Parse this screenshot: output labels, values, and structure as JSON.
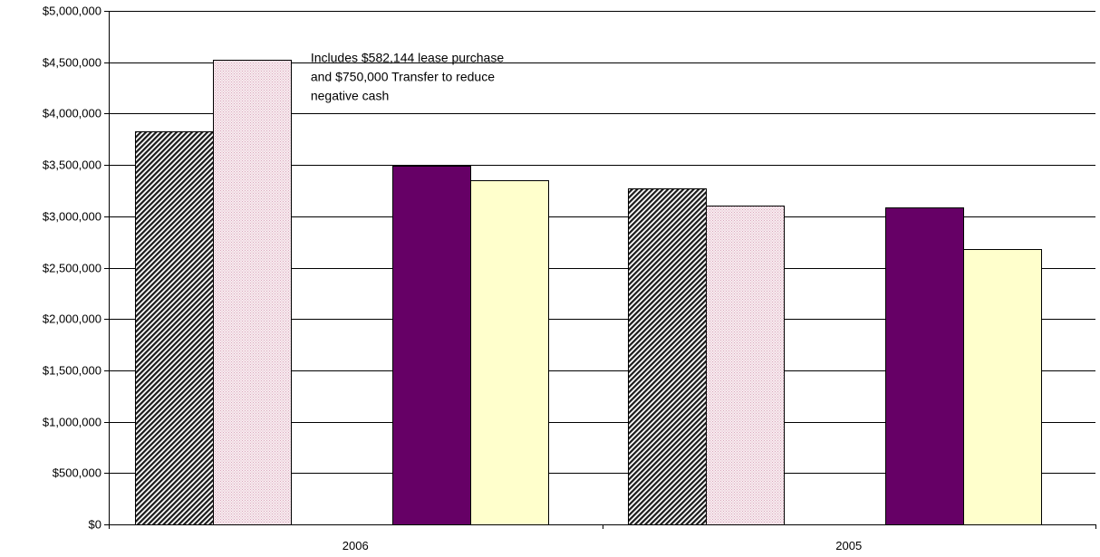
{
  "chart_data": {
    "type": "bar",
    "title": "",
    "xlabel": "",
    "ylabel": "",
    "ylim": [
      0,
      5000000
    ],
    "yticks": [
      0,
      500000,
      1000000,
      1500000,
      2000000,
      2500000,
      3000000,
      3500000,
      4000000,
      4500000,
      5000000
    ],
    "ytick_labels": [
      "$0",
      "$500,000",
      "$1,000,000",
      "$1,500,000",
      "$2,000,000",
      "$2,500,000",
      "$3,000,000",
      "$3,500,000",
      "$4,000,000",
      "$4,500,000",
      "$5,000,000"
    ],
    "grid": true,
    "legend": "none",
    "categories": [
      "2006",
      "2005"
    ],
    "series": [
      {
        "fill": "hatch-dark",
        "color": "#333333",
        "values": [
          3830000,
          3270000
        ]
      },
      {
        "fill": "dots-pink",
        "color": "#f0d8e0",
        "values": [
          4520000,
          3100000
        ]
      },
      {
        "fill": "solid",
        "color": "#660066",
        "values": [
          3490000,
          3085000
        ]
      },
      {
        "fill": "solid",
        "color": "#ffffcc",
        "values": [
          3355000,
          2680000
        ]
      }
    ],
    "annotation": {
      "lines": [
        "Includes $582,144 lease purchase",
        "and $750,000 Transfer to reduce",
        "negative cash"
      ]
    }
  }
}
